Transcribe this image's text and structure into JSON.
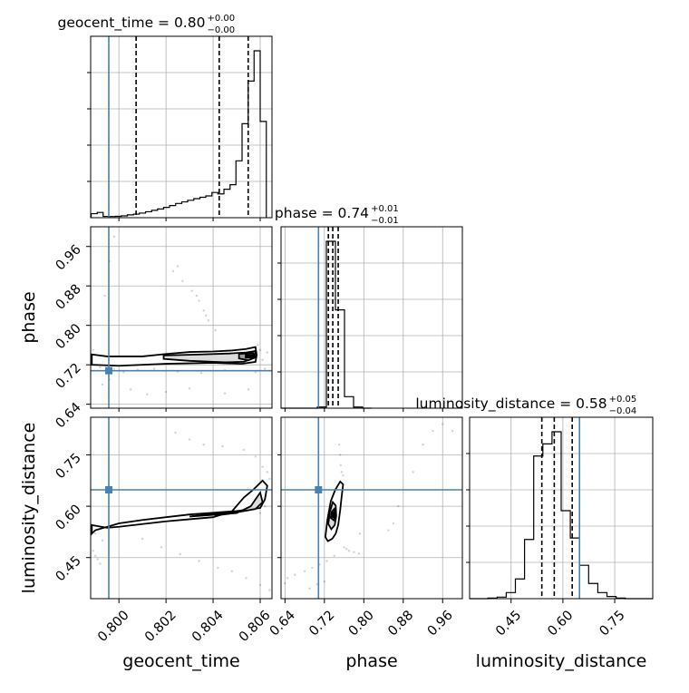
{
  "chart_data": {
    "type": "corner",
    "parameters": [
      {
        "name": "geocent_time",
        "median": "0.80",
        "plus": "+0.00",
        "minus": "−0.00",
        "range": [
          0.7988,
          0.8065
        ],
        "ticks": [
          0.8,
          0.802,
          0.804,
          0.806
        ],
        "tick_labels": [
          "0.800",
          "0.802",
          "0.804",
          "0.806"
        ],
        "quantiles": [
          0.80073,
          0.80426,
          0.80549
        ],
        "truth": 0.79957
      },
      {
        "name": "phase",
        "median": "0.74",
        "plus": "+0.01",
        "minus": "−0.01",
        "range": [
          0.632,
          1.0
        ],
        "ticks": [
          0.64,
          0.72,
          0.8,
          0.88,
          0.96
        ],
        "tick_labels": [
          "0.64",
          "0.72",
          "0.80",
          "0.88",
          "0.96"
        ],
        "quantiles": [
          0.728,
          0.737,
          0.748
        ],
        "truth": 0.708
      },
      {
        "name": "luminosity_distance",
        "median": "0.58",
        "plus": "+0.05",
        "minus": "−0.04",
        "range": [
          0.33,
          0.86
        ],
        "ticks": [
          0.45,
          0.6,
          0.75
        ],
        "tick_labels": [
          "0.45",
          "0.60",
          "0.75"
        ],
        "quantiles": [
          0.539,
          0.575,
          0.627
        ],
        "truth": 0.648
      }
    ],
    "histograms": [
      {
        "param": "geocent_time",
        "edges": [
          0.79882,
          0.79908,
          0.79933,
          0.79959,
          0.79985,
          0.8001,
          0.80036,
          0.80062,
          0.80087,
          0.80113,
          0.80139,
          0.80164,
          0.8019,
          0.80215,
          0.80241,
          0.80267,
          0.80292,
          0.80318,
          0.80344,
          0.80369,
          0.80395,
          0.8042,
          0.80446,
          0.80472,
          0.80497,
          0.80523,
          0.80549,
          0.80574,
          0.806,
          0.80626
        ],
        "counts": [
          88,
          115,
          28,
          26,
          30,
          40,
          62,
          78,
          100,
          130,
          160,
          190,
          225,
          265,
          310,
          345,
          380,
          415,
          445,
          475,
          550,
          520,
          620,
          720,
          1240,
          2050,
          2980,
          3640,
          2100
        ]
      },
      {
        "param": "phase",
        "edges": [
          0.632,
          0.6504,
          0.6688,
          0.6872,
          0.7056,
          0.724,
          0.7424,
          0.7608,
          0.7792,
          0.7976,
          0.816
        ],
        "counts": [
          0,
          0,
          0,
          0,
          6,
          900,
          530,
          62,
          6,
          0
        ]
      },
      {
        "param": "luminosity_distance",
        "edges": [
          0.33,
          0.3565,
          0.383,
          0.4095,
          0.436,
          0.4625,
          0.489,
          0.5155,
          0.542,
          0.5685,
          0.595,
          0.6215,
          0.648,
          0.6745,
          0.701,
          0.7275,
          0.754,
          0.7805,
          0.807,
          0.8335,
          0.86
        ],
        "counts": [
          0,
          0,
          4,
          10,
          40,
          130,
          390,
          940,
          1020,
          1100,
          580,
          400,
          220,
          100,
          40,
          14,
          4,
          0,
          0,
          0
        ]
      }
    ],
    "contours_2d": [
      {
        "x": "geocent_time",
        "y": "phase",
        "levels": [
          [
            [
              0.79885,
              0.741
            ],
            [
              0.7995,
              0.737
            ],
            [
              0.801,
              0.737
            ],
            [
              0.802,
              0.742
            ],
            [
              0.803,
              0.746
            ],
            [
              0.804,
              0.747
            ],
            [
              0.8048,
              0.749
            ],
            [
              0.8054,
              0.752
            ],
            [
              0.8058,
              0.756
            ],
            [
              0.80585,
              0.74
            ],
            [
              0.8058,
              0.726
            ],
            [
              0.8052,
              0.722
            ],
            [
              0.804,
              0.724
            ],
            [
              0.802,
              0.722
            ],
            [
              0.8,
              0.718
            ],
            [
              0.79885,
              0.72
            ]
          ],
          [
            [
              0.8019,
              0.739
            ],
            [
              0.8035,
              0.741
            ],
            [
              0.8047,
              0.743
            ],
            [
              0.8054,
              0.745
            ],
            [
              0.8058,
              0.748
            ],
            [
              0.80575,
              0.734
            ],
            [
              0.8053,
              0.726
            ],
            [
              0.8045,
              0.725
            ],
            [
              0.803,
              0.728
            ],
            [
              0.8019,
              0.732
            ]
          ],
          [
            [
              0.8051,
              0.742
            ],
            [
              0.8057,
              0.744
            ],
            [
              0.8058,
              0.736
            ],
            [
              0.8055,
              0.729
            ],
            [
              0.8051,
              0.733
            ]
          ]
        ],
        "core": [
          [
            0.80535,
            0.733
          ],
          [
            0.80575,
            0.733
          ],
          [
            0.80575,
            0.742
          ],
          [
            0.80535,
            0.742
          ]
        ],
        "samples": [
          [
            0.7989,
            0.75
          ],
          [
            0.799,
            0.738
          ],
          [
            0.7991,
            0.725
          ],
          [
            0.7992,
            0.715
          ],
          [
            0.7995,
            0.708
          ],
          [
            0.7998,
            0.712
          ],
          [
            0.8002,
            0.705
          ],
          [
            0.8008,
            0.71
          ],
          [
            0.8015,
            0.712
          ],
          [
            0.8025,
            0.706
          ],
          [
            0.8035,
            0.703
          ],
          [
            0.8045,
            0.709
          ],
          [
            0.8058,
            0.705
          ],
          [
            0.8062,
            0.712
          ],
          [
            0.806,
            0.75
          ],
          [
            0.8063,
            0.745
          ],
          [
            0.8005,
            0.67
          ],
          [
            0.8012,
            0.66
          ],
          [
            0.802,
            0.665
          ],
          [
            0.803,
            0.672
          ],
          [
            0.8045,
            0.662
          ],
          [
            0.8055,
            0.67
          ],
          [
            0.7996,
            0.69
          ],
          [
            0.7993,
            0.68
          ],
          [
            0.8023,
            0.91
          ],
          [
            0.8027,
            0.89
          ],
          [
            0.8031,
            0.87
          ],
          [
            0.8034,
            0.85
          ],
          [
            0.8036,
            0.83
          ],
          [
            0.8038,
            0.81
          ],
          [
            0.8041,
            0.79
          ],
          [
            0.8025,
            0.92
          ],
          [
            0.8033,
            0.86
          ],
          [
            0.8037,
            0.82
          ],
          [
            0.7998,
            0.98
          ],
          [
            0.7996,
            0.93
          ],
          [
            0.7994,
            0.86
          ],
          [
            0.8059,
            0.76
          ],
          [
            0.8061,
            0.73
          ]
        ]
      },
      {
        "x": "geocent_time",
        "y": "luminosity_distance",
        "levels": [
          [
            [
              0.79885,
              0.545
            ],
            [
              0.7995,
              0.537
            ],
            [
              0.8,
              0.54
            ],
            [
              0.801,
              0.548
            ],
            [
              0.802,
              0.556
            ],
            [
              0.803,
              0.562
            ],
            [
              0.804,
              0.568
            ],
            [
              0.8048,
              0.585
            ],
            [
              0.8053,
              0.625
            ],
            [
              0.8057,
              0.648
            ],
            [
              0.8061,
              0.675
            ],
            [
              0.8063,
              0.66
            ],
            [
              0.8062,
              0.62
            ],
            [
              0.806,
              0.595
            ],
            [
              0.805,
              0.586
            ],
            [
              0.804,
              0.581
            ],
            [
              0.803,
              0.576
            ],
            [
              0.802,
              0.568
            ],
            [
              0.801,
              0.56
            ],
            [
              0.8,
              0.55
            ],
            [
              0.799,
              0.53
            ],
            [
              0.79885,
              0.52
            ]
          ],
          [
            [
              0.803,
              0.57
            ],
            [
              0.804,
              0.575
            ],
            [
              0.805,
              0.58
            ],
            [
              0.8056,
              0.6
            ],
            [
              0.806,
              0.64
            ],
            [
              0.8061,
              0.612
            ],
            [
              0.8058,
              0.592
            ],
            [
              0.805,
              0.582
            ],
            [
              0.804,
              0.578
            ]
          ],
          [
            [
              0.8037,
              0.578
            ],
            [
              0.8042,
              0.574
            ],
            [
              0.8047,
              0.578
            ],
            [
              0.8042,
              0.581
            ]
          ]
        ],
        "core": [
          [
            0.8038,
            0.576
          ],
          [
            0.8047,
            0.576
          ],
          [
            0.8047,
            0.58
          ],
          [
            0.8038,
            0.58
          ]
        ],
        "samples": [
          [
            0.8024,
            0.815
          ],
          [
            0.803,
            0.795
          ],
          [
            0.8036,
            0.78
          ],
          [
            0.8044,
            0.775
          ],
          [
            0.8053,
            0.765
          ],
          [
            0.8058,
            0.745
          ],
          [
            0.8061,
            0.715
          ],
          [
            0.8063,
            0.7
          ],
          [
            0.8064,
            0.68
          ],
          [
            0.801,
            0.505
          ],
          [
            0.8018,
            0.48
          ],
          [
            0.8026,
            0.46
          ],
          [
            0.8034,
            0.44
          ],
          [
            0.8042,
            0.42
          ],
          [
            0.8048,
            0.41
          ],
          [
            0.8054,
            0.39
          ],
          [
            0.806,
            0.37
          ],
          [
            0.8064,
            0.355
          ],
          [
            0.7989,
            0.47
          ],
          [
            0.799,
            0.455
          ],
          [
            0.7991,
            0.445
          ],
          [
            0.7992,
            0.432
          ],
          [
            0.7993,
            0.5
          ],
          [
            0.799,
            0.52
          ],
          [
            0.806,
            0.58
          ],
          [
            0.8062,
            0.6
          ]
        ]
      },
      {
        "x": "phase",
        "y": "luminosity_distance",
        "levels": [
          [
            [
              0.722,
              0.51
            ],
            [
              0.726,
              0.56
            ],
            [
              0.733,
              0.615
            ],
            [
              0.742,
              0.648
            ],
            [
              0.752,
              0.672
            ],
            [
              0.758,
              0.664
            ],
            [
              0.755,
              0.628
            ],
            [
              0.752,
              0.588
            ],
            [
              0.748,
              0.545
            ],
            [
              0.743,
              0.52
            ],
            [
              0.736,
              0.505
            ],
            [
              0.727,
              0.498
            ]
          ],
          [
            [
              0.728,
              0.548
            ],
            [
              0.731,
              0.583
            ],
            [
              0.737,
              0.612
            ],
            [
              0.743,
              0.602
            ],
            [
              0.744,
              0.571
            ],
            [
              0.741,
              0.545
            ],
            [
              0.734,
              0.533
            ]
          ],
          [
            [
              0.733,
              0.566
            ],
            [
              0.735,
              0.584
            ],
            [
              0.74,
              0.592
            ],
            [
              0.742,
              0.575
            ],
            [
              0.739,
              0.559
            ]
          ]
        ],
        "core": [
          [
            0.734,
            0.566
          ],
          [
            0.741,
            0.566
          ],
          [
            0.741,
            0.584
          ],
          [
            0.734,
            0.584
          ]
        ],
        "samples": [
          [
            0.75,
            0.78
          ],
          [
            0.752,
            0.75
          ],
          [
            0.753,
            0.72
          ],
          [
            0.755,
            0.7
          ],
          [
            0.758,
            0.69
          ],
          [
            0.76,
            0.48
          ],
          [
            0.765,
            0.475
          ],
          [
            0.77,
            0.47
          ],
          [
            0.78,
            0.466
          ],
          [
            0.79,
            0.462
          ],
          [
            0.74,
            0.455
          ],
          [
            0.725,
            0.44
          ],
          [
            0.71,
            0.43
          ],
          [
            0.695,
            0.42
          ],
          [
            0.68,
            0.41
          ],
          [
            0.66,
            0.4
          ],
          [
            0.645,
            0.39
          ],
          [
            0.64,
            0.375
          ],
          [
            0.72,
            0.38
          ],
          [
            0.69,
            0.36
          ],
          [
            0.705,
            0.372
          ],
          [
            0.792,
            0.52
          ],
          [
            0.85,
            0.53
          ],
          [
            0.86,
            0.55
          ],
          [
            0.87,
            0.6
          ],
          [
            0.9,
            0.7
          ],
          [
            0.92,
            0.78
          ],
          [
            0.94,
            0.82
          ],
          [
            0.96,
            0.84
          ],
          [
            0.98,
            0.82
          ]
        ]
      }
    ],
    "colors": {
      "truth": "#4682b4",
      "contour": "#000000",
      "quantile": "#000000",
      "grid": "#b0b0b0",
      "samples": "#000000"
    }
  }
}
